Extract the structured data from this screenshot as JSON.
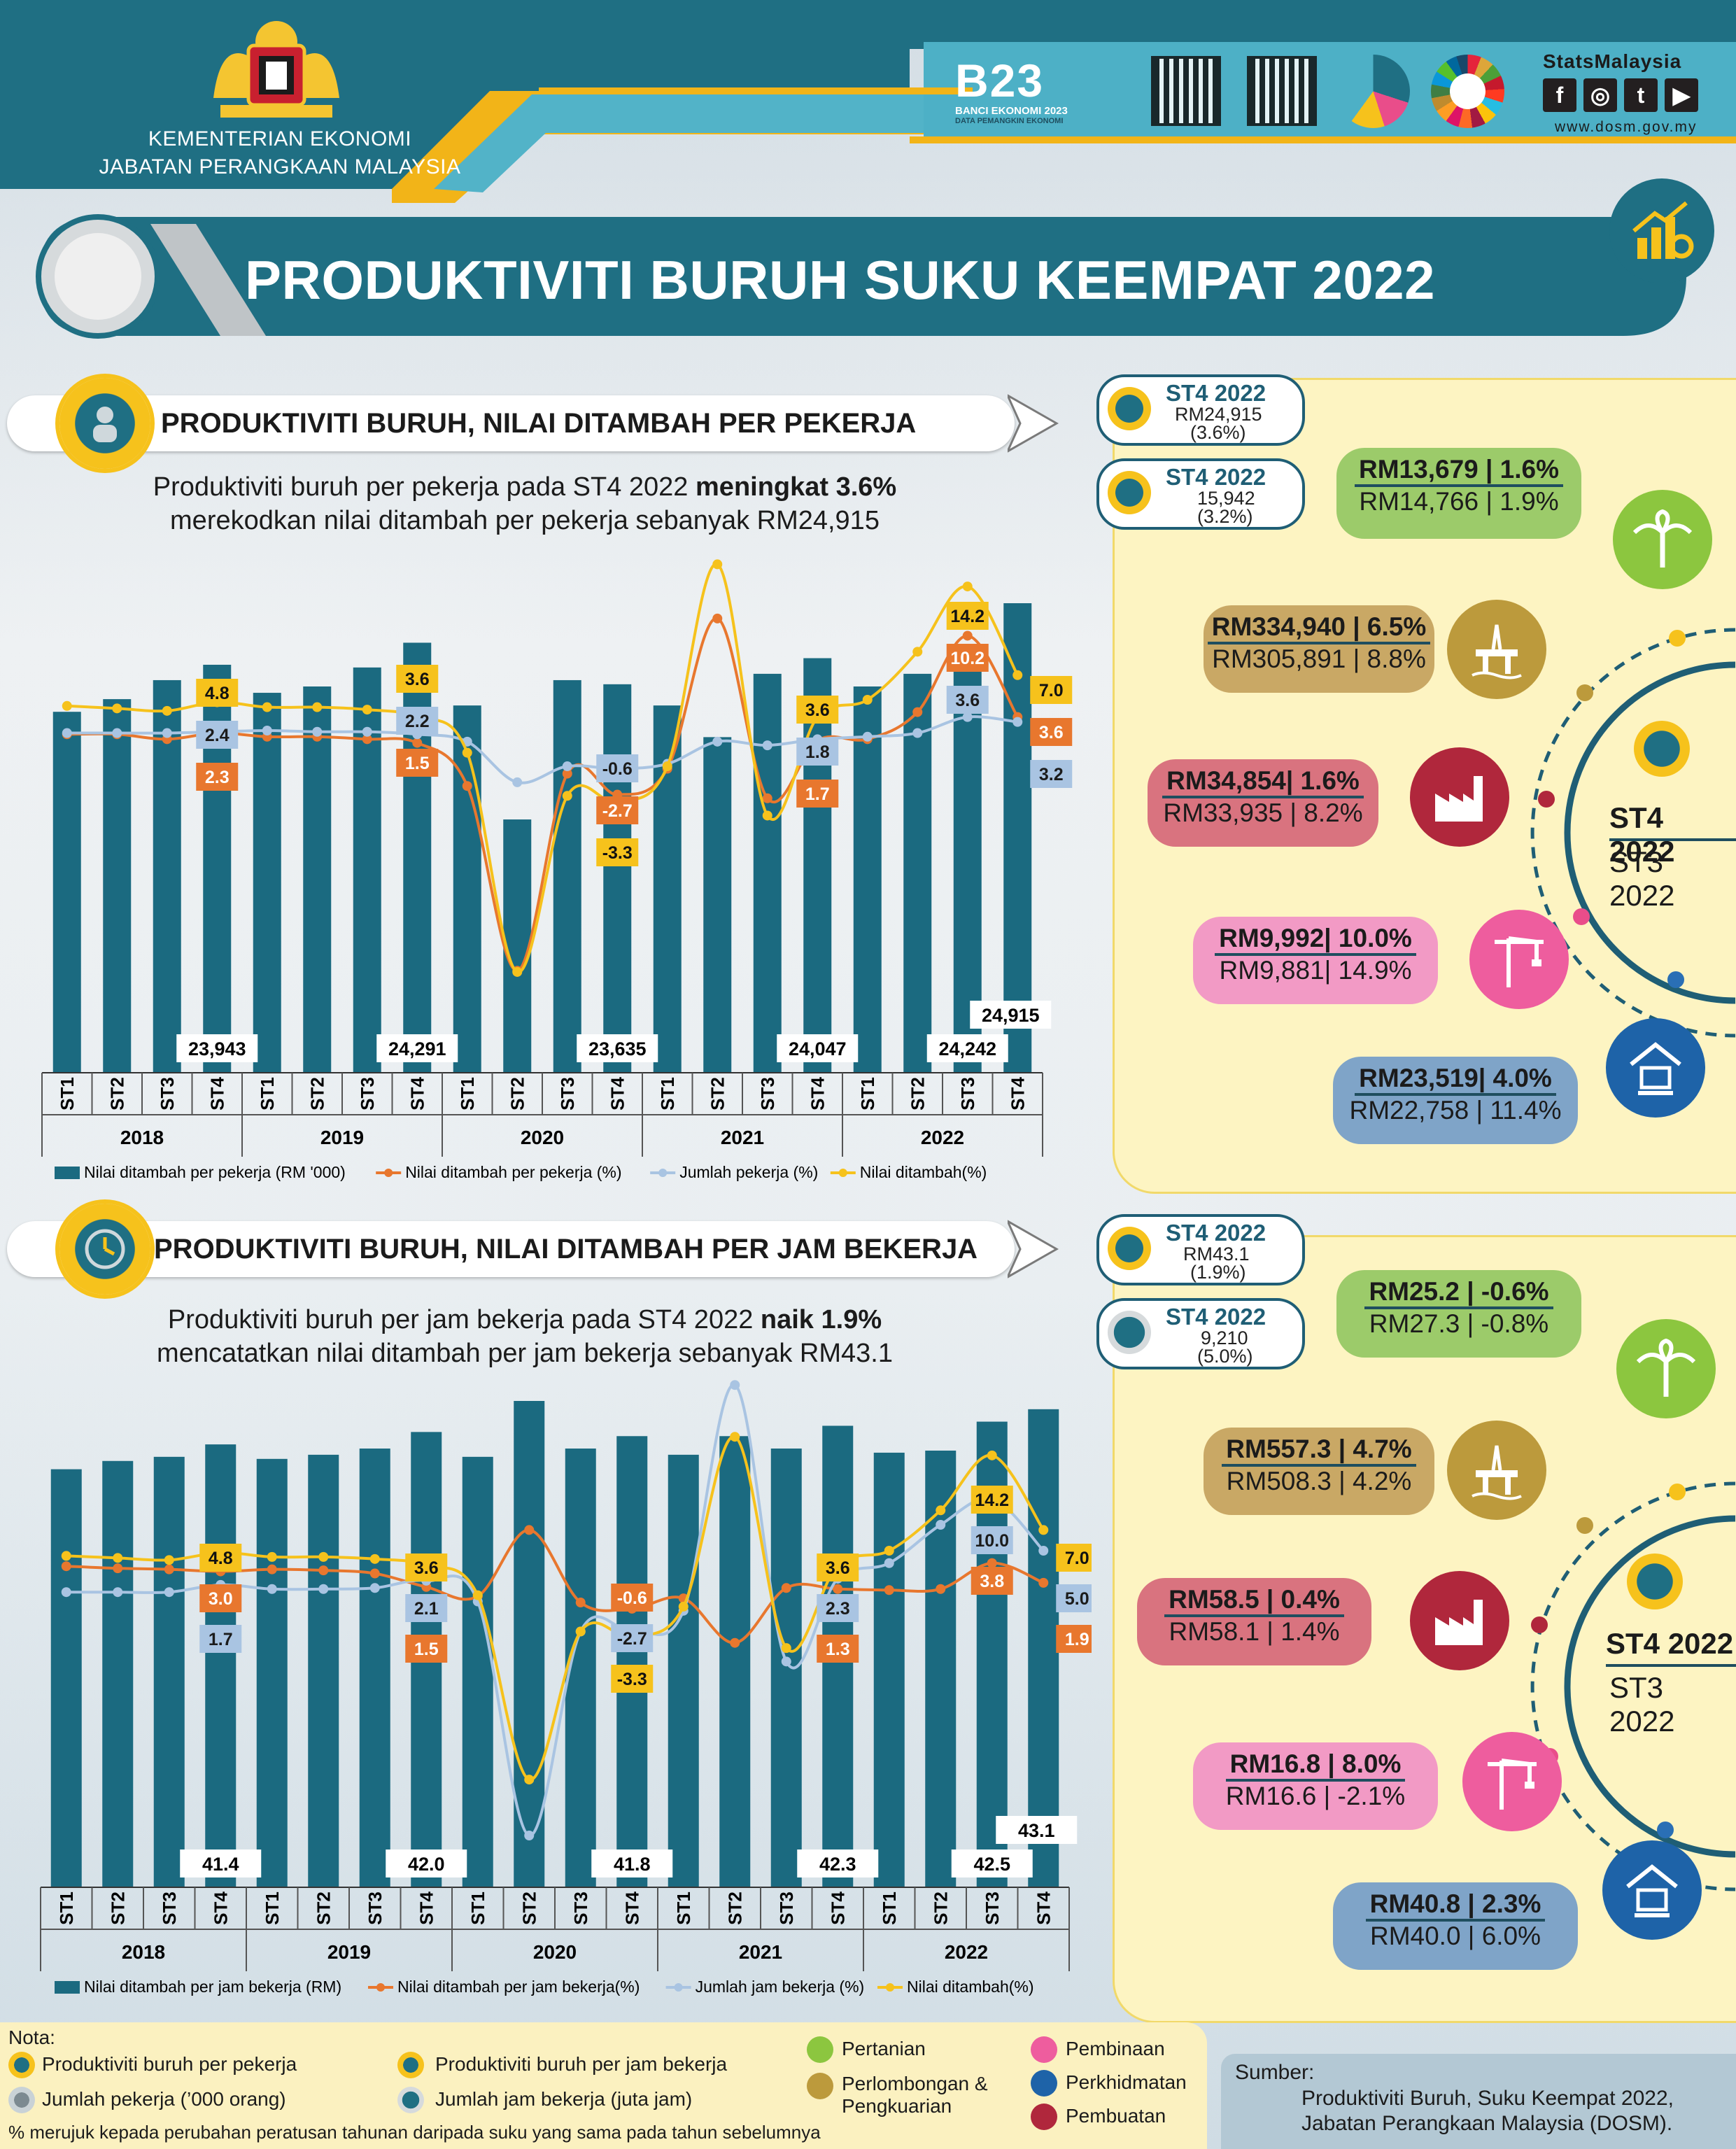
{
  "header": {
    "ministry": "KEMENTERIAN EKONOMI",
    "department": "JABATAN PERANGKAAN MALAYSIA",
    "census_logo_text": "B23",
    "census_sub": "BANCI EKONOMI 2023",
    "census_sub2": "DATA PEMANGKIN EKONOMI",
    "stats_brand": "StatsMalaysia",
    "website": "www.dosm.gov.my",
    "social": [
      "f",
      "◎",
      "t",
      "▶"
    ]
  },
  "title": "PRODUKTIVITI BURUH SUKU KEEMPAT 2022",
  "colors": {
    "teal": "#1f6f83",
    "bar": "#1b6a80",
    "orange": "#e8772e",
    "lightblue": "#a9c4e2",
    "yellow": "#f6c21c"
  },
  "section1": {
    "heading": "PRODUKTIVITI BURUH, NILAI DITAMBAH PER PEKERJA",
    "desc_line1_a": "Produktiviti buruh per pekerja pada ST4 2022 ",
    "desc_line1_b": "meningkat 3.6%",
    "desc_line2": "merekodkan nilai ditambah per pekerja sebanyak RM24,915",
    "badge1": {
      "l1": "ST4 2022",
      "l2": "RM24,915",
      "l3": "(3.6%)"
    },
    "badge2": {
      "l1": "ST4 2022",
      "l2": "15,942",
      "l3": "(3.2%)"
    },
    "circle_top": "ST4 2022",
    "circle_bottom": "ST3 2022",
    "sectors": [
      {
        "icon": "palm-tree-icon",
        "top": "RM13,679 |  1.6%",
        "bottom": "RM14,766 | 1.9%"
      },
      {
        "icon": "oil-rig-icon",
        "top": "RM334,940 | 6.5%",
        "bottom": "RM305,891 | 8.8%"
      },
      {
        "icon": "factory-icon",
        "top": "RM34,854| 1.6%",
        "bottom": "RM33,935 | 8.2%"
      },
      {
        "icon": "crane-icon",
        "top": "RM9,992|  10.0%",
        "bottom": "RM9,881| 14.9%"
      },
      {
        "icon": "services-icon",
        "top": "RM23,519|  4.0%",
        "bottom": "RM22,758 | 11.4%"
      }
    ]
  },
  "section2": {
    "heading": "PRODUKTIVITI BURUH, NILAI DITAMBAH PER JAM BEKERJA",
    "desc_line1_a": "Produktiviti buruh per jam bekerja pada ST4 2022 ",
    "desc_line1_b": "naik 1.9%",
    "desc_line2": "mencatatkan nilai ditambah per jam bekerja sebanyak RM43.1",
    "badge1": {
      "l1": "ST4 2022",
      "l2": "RM43.1",
      "l3": "(1.9%)"
    },
    "badge2": {
      "l1": "ST4 2022",
      "l2": "9,210",
      "l3": "(5.0%)"
    },
    "circle_top": "ST4 2022",
    "circle_bottom": "ST3 2022",
    "sectors": [
      {
        "icon": "palm-tree-icon",
        "top": "RM25.2 |  -0.6%",
        "bottom": "RM27.3 |  -0.8%"
      },
      {
        "icon": "oil-rig-icon",
        "top": "RM557.3 | 4.7%",
        "bottom": "RM508.3 | 4.2%"
      },
      {
        "icon": "factory-icon",
        "top": "RM58.5 |  0.4%",
        "bottom": "RM58.1 |  1.4%"
      },
      {
        "icon": "crane-icon",
        "top": "RM16.8 |  8.0%",
        "bottom": "RM16.6 | -2.1%"
      },
      {
        "icon": "services-icon",
        "top": "RM40.8 |  2.3%",
        "bottom": "RM40.0 | 6.0%"
      }
    ]
  },
  "chart_data": [
    {
      "type": "bar",
      "categories": [
        "ST1",
        "ST2",
        "ST3",
        "ST4",
        "ST1",
        "ST2",
        "ST3",
        "ST4",
        "ST1",
        "ST2",
        "ST3",
        "ST4",
        "ST1",
        "ST2",
        "ST3",
        "ST4",
        "ST1",
        "ST2",
        "ST3",
        "ST4"
      ],
      "groups": [
        "2018",
        "2019",
        "2020",
        "2021",
        "2022"
      ],
      "series": [
        {
          "name": "Nilai ditambah per pekerja (RM '000)",
          "kind": "bar",
          "values": [
            23.2,
            23.4,
            23.7,
            23.943,
            23.5,
            23.6,
            23.9,
            24.291,
            23.3,
            21.5,
            23.7,
            23.635,
            23.3,
            22.8,
            23.8,
            24.047,
            23.6,
            23.8,
            24.242,
            24.915
          ]
        },
        {
          "name": "Nilai ditambah per pekerja (%)",
          "kind": "line",
          "values": [
            2.2,
            2.2,
            1.8,
            2.3,
            2.0,
            2.0,
            1.8,
            1.5,
            -2.0,
            -17.0,
            -1.0,
            -2.7,
            -0.6,
            11.6,
            -3.0,
            1.7,
            1.8,
            4.0,
            10.2,
            3.6
          ]
        },
        {
          "name": "Jumlah pekerja (%)",
          "kind": "line",
          "values": [
            2.3,
            2.3,
            2.3,
            2.4,
            2.5,
            2.4,
            2.4,
            2.2,
            1.6,
            -1.7,
            -0.4,
            -0.6,
            -0.2,
            1.6,
            1.3,
            1.8,
            2.0,
            2.3,
            3.6,
            3.2
          ]
        },
        {
          "name": "Nilai ditambah(%)",
          "kind": "line",
          "values": [
            4.5,
            4.3,
            4.1,
            4.8,
            4.4,
            4.4,
            4.2,
            3.6,
            0.7,
            -17.1,
            -2.8,
            -3.3,
            -0.4,
            16.0,
            -4.4,
            3.6,
            5.0,
            8.9,
            14.2,
            7.0
          ]
        }
      ],
      "bar_labels": {
        "3": "23,943",
        "7": "24,291",
        "11": "23,635",
        "15": "24,047",
        "18": "24,242",
        "19": "24,915"
      },
      "line_labels": [
        {
          "series": 3,
          "index": 3,
          "text": "4.8"
        },
        {
          "series": 2,
          "index": 3,
          "text": "2.4"
        },
        {
          "series": 1,
          "index": 3,
          "text": "2.3"
        },
        {
          "series": 3,
          "index": 7,
          "text": "3.6"
        },
        {
          "series": 2,
          "index": 7,
          "text": "2.2"
        },
        {
          "series": 1,
          "index": 7,
          "text": "1.5"
        },
        {
          "series": 2,
          "index": 11,
          "text": "-0.6"
        },
        {
          "series": 1,
          "index": 11,
          "text": "-2.7"
        },
        {
          "series": 3,
          "index": 11,
          "text": "-3.3"
        },
        {
          "series": 3,
          "index": 15,
          "text": "3.6"
        },
        {
          "series": 2,
          "index": 15,
          "text": "1.8"
        },
        {
          "series": 1,
          "index": 15,
          "text": "1.7"
        },
        {
          "series": 3,
          "index": 18,
          "text": "14.2"
        },
        {
          "series": 1,
          "index": 18,
          "text": "10.2"
        },
        {
          "series": 2,
          "index": 18,
          "text": "3.6"
        },
        {
          "series": 3,
          "index": 19,
          "text": "7.0"
        },
        {
          "series": 1,
          "index": 19,
          "text": "3.6"
        },
        {
          "series": 2,
          "index": 19,
          "text": "3.2"
        }
      ]
    },
    {
      "type": "bar",
      "categories": [
        "ST1",
        "ST2",
        "ST3",
        "ST4",
        "ST1",
        "ST2",
        "ST3",
        "ST4",
        "ST1",
        "ST2",
        "ST3",
        "ST4",
        "ST1",
        "ST2",
        "ST3",
        "ST4",
        "ST1",
        "ST2",
        "ST3",
        "ST4"
      ],
      "groups": [
        "2018",
        "2019",
        "2020",
        "2021",
        "2022"
      ],
      "series": [
        {
          "name": "Nilai ditambah per jam bekerja (RM)",
          "kind": "bar",
          "values": [
            40.2,
            40.6,
            40.8,
            41.4,
            40.7,
            40.9,
            41.2,
            42.0,
            40.8,
            43.5,
            41.2,
            41.8,
            40.9,
            41.8,
            41.2,
            42.3,
            41.0,
            41.1,
            42.5,
            43.1
          ]
        },
        {
          "name": "Nilai ditambah per jam bekerja(%)",
          "kind": "line",
          "values": [
            3.5,
            3.3,
            3.2,
            3.0,
            3.2,
            3.1,
            2.8,
            1.5,
            0.6,
            7.0,
            0.0,
            -0.6,
            0.4,
            -3.9,
            1.4,
            1.3,
            1.2,
            1.3,
            3.8,
            1.9
          ]
        },
        {
          "name": "Jumlah jam bekerja (%)",
          "kind": "line",
          "values": [
            1.0,
            1.0,
            1.0,
            1.7,
            1.3,
            1.3,
            1.4,
            2.1,
            0.1,
            -22.5,
            -2.8,
            -2.7,
            -0.8,
            21.0,
            -5.7,
            2.3,
            3.8,
            7.5,
            10.0,
            5.0
          ]
        },
        {
          "name": "Nilai ditambah(%)",
          "kind": "line",
          "values": [
            4.5,
            4.3,
            4.1,
            4.8,
            4.4,
            4.4,
            4.2,
            3.6,
            0.7,
            -17.1,
            -2.8,
            -3.3,
            -0.4,
            16.0,
            -4.4,
            3.6,
            5.0,
            8.9,
            14.2,
            7.0
          ]
        }
      ],
      "bar_labels": {
        "3": "41.4",
        "7": "42.0",
        "11": "41.8",
        "15": "42.3",
        "18": "42.5",
        "19": "43.1"
      },
      "line_labels": [
        {
          "series": 3,
          "index": 3,
          "text": "4.8"
        },
        {
          "series": 1,
          "index": 3,
          "text": "3.0"
        },
        {
          "series": 2,
          "index": 3,
          "text": "1.7"
        },
        {
          "series": 3,
          "index": 7,
          "text": "3.6"
        },
        {
          "series": 2,
          "index": 7,
          "text": "2.1"
        },
        {
          "series": 1,
          "index": 7,
          "text": "1.5"
        },
        {
          "series": 1,
          "index": 11,
          "text": "-0.6"
        },
        {
          "series": 2,
          "index": 11,
          "text": "-2.7"
        },
        {
          "series": 3,
          "index": 11,
          "text": "-3.3"
        },
        {
          "series": 3,
          "index": 15,
          "text": "3.6"
        },
        {
          "series": 2,
          "index": 15,
          "text": "2.3"
        },
        {
          "series": 1,
          "index": 15,
          "text": "1.3"
        },
        {
          "series": 3,
          "index": 18,
          "text": "14.2"
        },
        {
          "series": 2,
          "index": 18,
          "text": "10.0"
        },
        {
          "series": 1,
          "index": 18,
          "text": "3.8"
        },
        {
          "series": 3,
          "index": 19,
          "text": "7.0"
        },
        {
          "series": 2,
          "index": 19,
          "text": "5.0"
        },
        {
          "series": 1,
          "index": 19,
          "text": "1.9"
        }
      ]
    }
  ],
  "nota": {
    "title": "Nota:",
    "items": [
      {
        "label": "Produktiviti buruh per pekerja"
      },
      {
        "label": "Jumlah pekerja (’000 orang)"
      },
      {
        "label": "Produktiviti buruh per jam bekerja"
      },
      {
        "label": "Jumlah jam bekerja (juta jam)"
      }
    ],
    "sectors": [
      "Pertanian",
      "Perlombongan &",
      "Pengkuarian",
      "Pembinaan",
      "Perkhidmatan",
      "Pembuatan"
    ],
    "footnote": "% merujuk kepada perubahan peratusan tahunan daripada suku yang sama pada tahun sebelumnya"
  },
  "source": {
    "title": "Sumber:",
    "line1": "Produktiviti Buruh, Suku Keempat 2022,",
    "line2": "Jabatan Perangkaan Malaysia (DOSM)."
  }
}
